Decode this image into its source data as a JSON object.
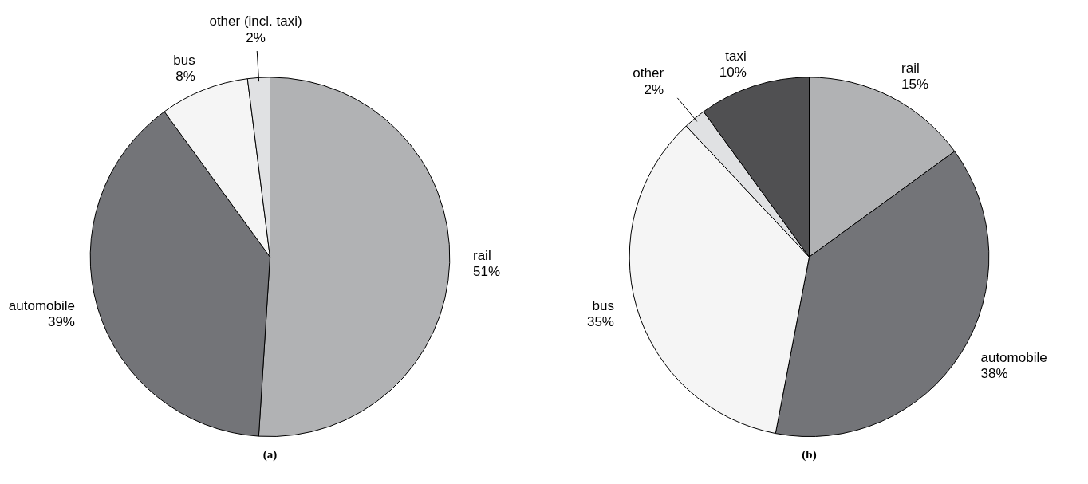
{
  "chart_data": [
    {
      "type": "pie",
      "title": "(a)",
      "categories": [
        "rail",
        "automobile",
        "bus",
        "other (incl. taxi)"
      ],
      "values": [
        51,
        39,
        8,
        2
      ],
      "value_labels": [
        "51%",
        "39%",
        "8%",
        "2%"
      ],
      "colors": [
        "#b1b2b4",
        "#737478",
        "#f5f5f5",
        "#e0e1e3"
      ]
    },
    {
      "type": "pie",
      "title": "(b)",
      "categories": [
        "rail",
        "automobile",
        "bus",
        "other",
        "taxi"
      ],
      "values": [
        15,
        38,
        35,
        2,
        10
      ],
      "value_labels": [
        "15%",
        "38%",
        "35%",
        "2%",
        "10%"
      ],
      "colors": [
        "#b1b2b4",
        "#737478",
        "#f5f5f5",
        "#e0e1e3",
        "#505052"
      ]
    }
  ]
}
